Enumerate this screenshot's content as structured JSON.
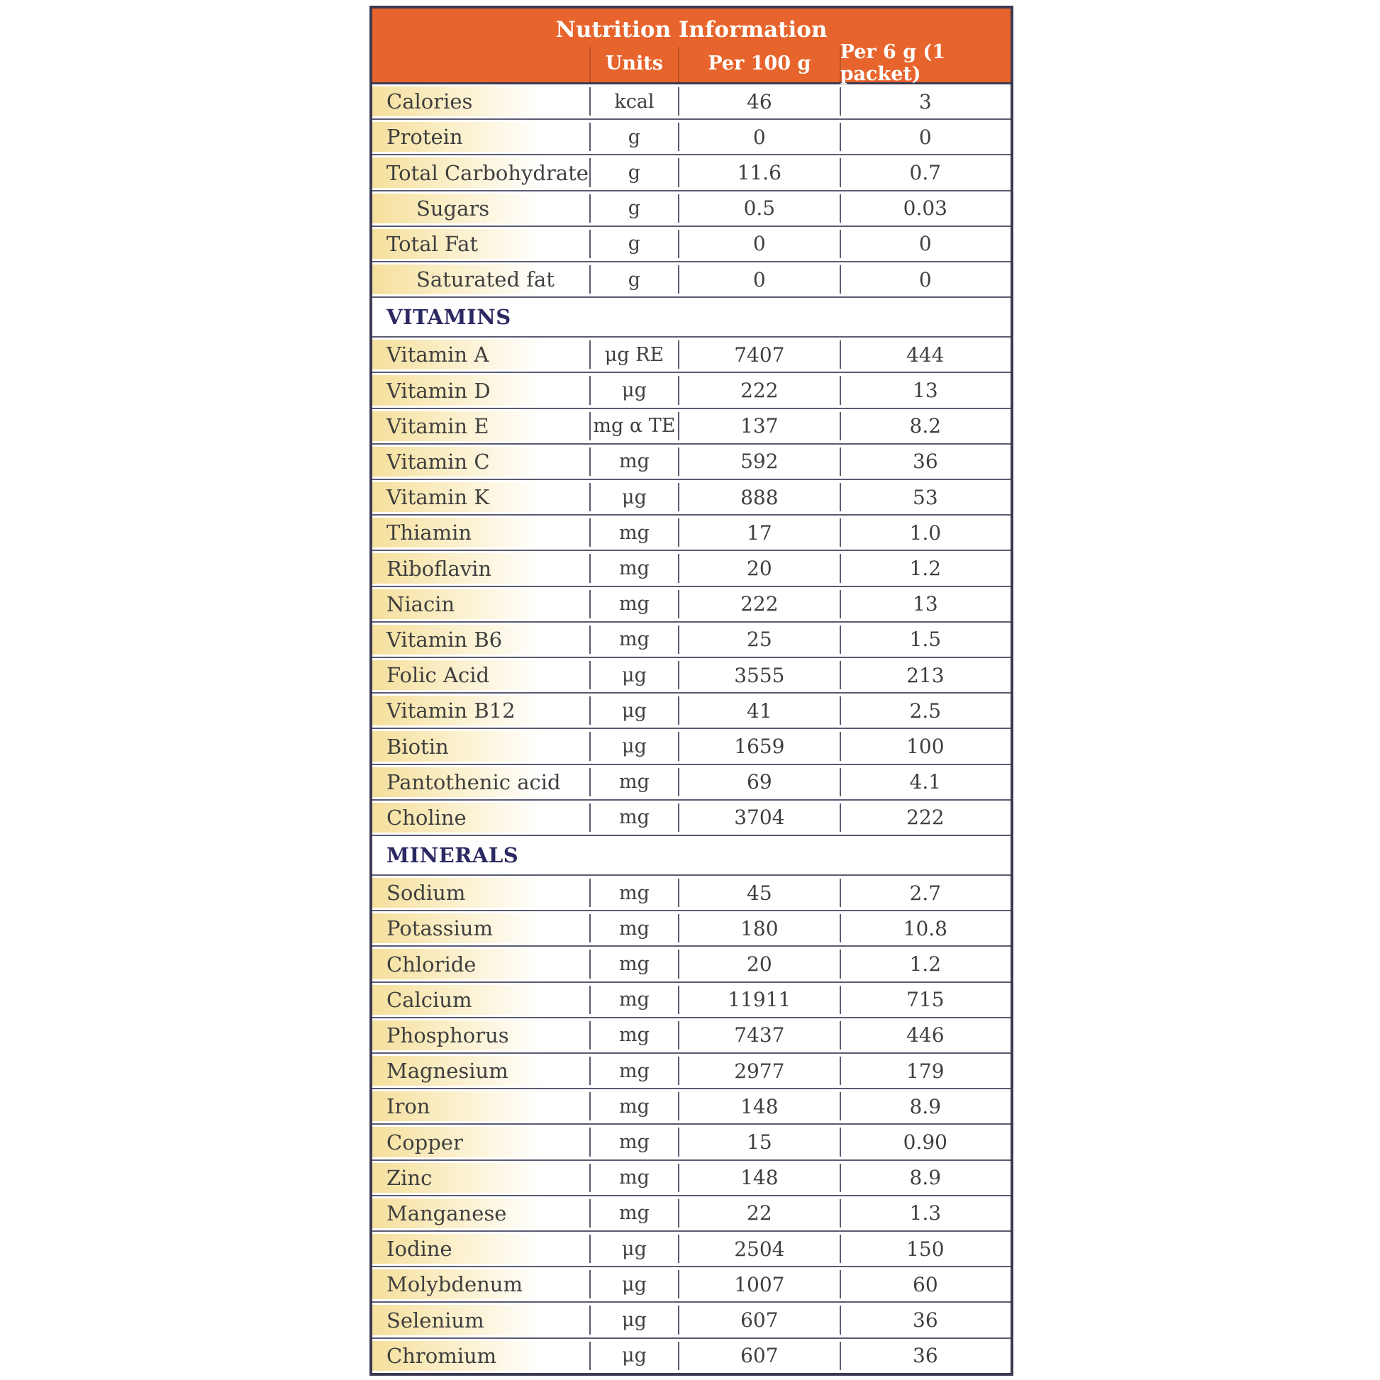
{
  "title": "Nutrition Information",
  "columns": {
    "units": "Units",
    "per100": "Per 100 g",
    "per6": "Per 6 g (1 packet)"
  },
  "colors": {
    "header_bg": "#E7642C",
    "header_text": "#FFFFFF",
    "border_outer": "#3B3A52",
    "border_inner": "#5C5B72",
    "label_grad_start": "#F5DF9C",
    "section_text": "#2B2962",
    "body_text": "#3F3F3F"
  },
  "rows": [
    {
      "type": "data",
      "label": "Calories",
      "indent": false,
      "unit": "kcal",
      "per100": "46",
      "per6": "3"
    },
    {
      "type": "data",
      "label": "Protein",
      "indent": false,
      "unit": "g",
      "per100": "0",
      "per6": "0"
    },
    {
      "type": "data",
      "label": "Total Carbohydrate",
      "indent": false,
      "unit": "g",
      "per100": "11.6",
      "per6": "0.7"
    },
    {
      "type": "data",
      "label": "Sugars",
      "indent": true,
      "unit": "g",
      "per100": "0.5",
      "per6": "0.03"
    },
    {
      "type": "data",
      "label": "Total Fat",
      "indent": false,
      "unit": "g",
      "per100": "0",
      "per6": "0"
    },
    {
      "type": "data",
      "label": "Saturated fat",
      "indent": true,
      "unit": "g",
      "per100": "0",
      "per6": "0"
    },
    {
      "type": "section",
      "label": "VITAMINS"
    },
    {
      "type": "data",
      "label": "Vitamin A",
      "indent": false,
      "unit": "μg RE",
      "per100": "7407",
      "per6": "444"
    },
    {
      "type": "data",
      "label": "Vitamin D",
      "indent": false,
      "unit": "μg",
      "per100": "222",
      "per6": "13"
    },
    {
      "type": "data",
      "label": "Vitamin E",
      "indent": false,
      "unit": "mg α TE",
      "per100": "137",
      "per6": "8.2"
    },
    {
      "type": "data",
      "label": "Vitamin C",
      "indent": false,
      "unit": "mg",
      "per100": "592",
      "per6": "36"
    },
    {
      "type": "data",
      "label": "Vitamin K",
      "indent": false,
      "unit": "μg",
      "per100": "888",
      "per6": "53"
    },
    {
      "type": "data",
      "label": "Thiamin",
      "indent": false,
      "unit": "mg",
      "per100": "17",
      "per6": "1.0"
    },
    {
      "type": "data",
      "label": "Riboflavin",
      "indent": false,
      "unit": "mg",
      "per100": "20",
      "per6": "1.2"
    },
    {
      "type": "data",
      "label": "Niacin",
      "indent": false,
      "unit": "mg",
      "per100": "222",
      "per6": "13"
    },
    {
      "type": "data",
      "label": "Vitamin B6",
      "indent": false,
      "unit": "mg",
      "per100": "25",
      "per6": "1.5"
    },
    {
      "type": "data",
      "label": "Folic Acid",
      "indent": false,
      "unit": "μg",
      "per100": "3555",
      "per6": "213"
    },
    {
      "type": "data",
      "label": "Vitamin B12",
      "indent": false,
      "unit": "μg",
      "per100": "41",
      "per6": "2.5"
    },
    {
      "type": "data",
      "label": "Biotin",
      "indent": false,
      "unit": "μg",
      "per100": "1659",
      "per6": "100"
    },
    {
      "type": "data",
      "label": "Pantothenic acid",
      "indent": false,
      "unit": "mg",
      "per100": "69",
      "per6": "4.1"
    },
    {
      "type": "data",
      "label": "Choline",
      "indent": false,
      "unit": "mg",
      "per100": "3704",
      "per6": "222"
    },
    {
      "type": "section",
      "label": "MINERALS"
    },
    {
      "type": "data",
      "label": "Sodium",
      "indent": false,
      "unit": "mg",
      "per100": "45",
      "per6": "2.7"
    },
    {
      "type": "data",
      "label": "Potassium",
      "indent": false,
      "unit": "mg",
      "per100": "180",
      "per6": "10.8"
    },
    {
      "type": "data",
      "label": "Chloride",
      "indent": false,
      "unit": "mg",
      "per100": "20",
      "per6": "1.2"
    },
    {
      "type": "data",
      "label": "Calcium",
      "indent": false,
      "unit": "mg",
      "per100": "11911",
      "per6": "715"
    },
    {
      "type": "data",
      "label": "Phosphorus",
      "indent": false,
      "unit": "mg",
      "per100": "7437",
      "per6": "446"
    },
    {
      "type": "data",
      "label": "Magnesium",
      "indent": false,
      "unit": "mg",
      "per100": "2977",
      "per6": "179"
    },
    {
      "type": "data",
      "label": "Iron",
      "indent": false,
      "unit": "mg",
      "per100": "148",
      "per6": "8.9"
    },
    {
      "type": "data",
      "label": "Copper",
      "indent": false,
      "unit": "mg",
      "per100": "15",
      "per6": "0.90"
    },
    {
      "type": "data",
      "label": "Zinc",
      "indent": false,
      "unit": "mg",
      "per100": "148",
      "per6": "8.9"
    },
    {
      "type": "data",
      "label": "Manganese",
      "indent": false,
      "unit": "mg",
      "per100": "22",
      "per6": "1.3"
    },
    {
      "type": "data",
      "label": "Iodine",
      "indent": false,
      "unit": "μg",
      "per100": "2504",
      "per6": "150"
    },
    {
      "type": "data",
      "label": "Molybdenum",
      "indent": false,
      "unit": "μg",
      "per100": "1007",
      "per6": "60"
    },
    {
      "type": "data",
      "label": "Selenium",
      "indent": false,
      "unit": "μg",
      "per100": "607",
      "per6": "36"
    },
    {
      "type": "data",
      "label": "Chromium",
      "indent": false,
      "unit": "μg",
      "per100": "607",
      "per6": "36"
    }
  ]
}
